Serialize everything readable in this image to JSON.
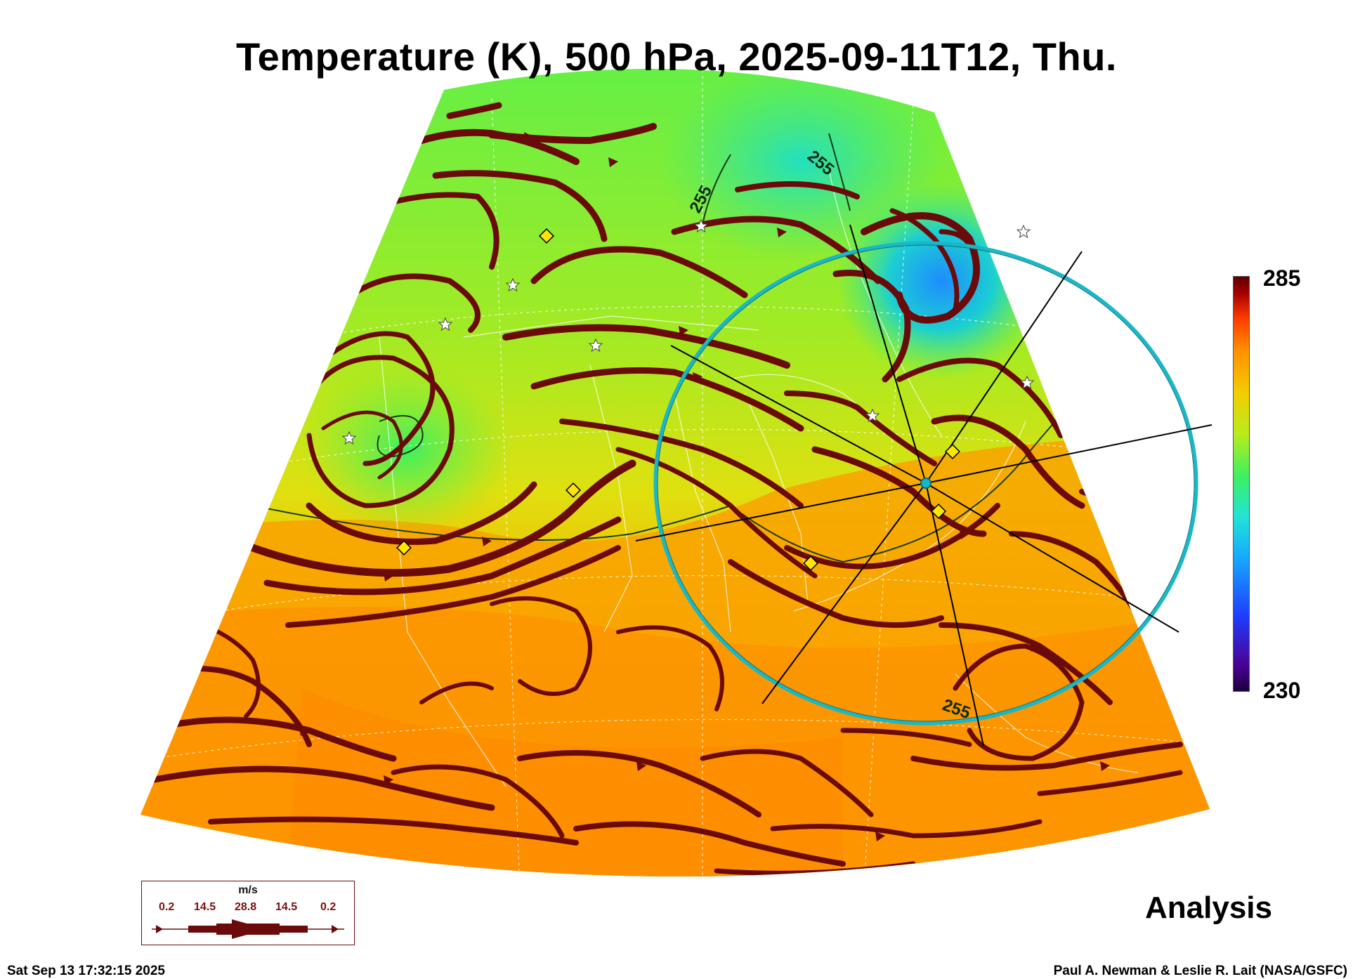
{
  "title": "Temperature (K), 500 hPa, 2025-09-11T12, Thu.",
  "colorbar": {
    "max": "285",
    "min": "230",
    "units": "K"
  },
  "contour_labels": [
    "255",
    "255",
    "255"
  ],
  "legend": {
    "unit": "m/s",
    "labels": [
      "0.2",
      "14.5",
      "28.8",
      "14.5",
      "0.2"
    ]
  },
  "analysis_label": "Analysis",
  "footer": {
    "timestamp": "Sat Sep 13 17:32:15 2025",
    "credit": "Paul A. Newman & Leslie R. Lait (NASA/GSFC)"
  },
  "colors": {
    "streamline": "#6b0a0a",
    "ring": "#19b8c6",
    "marker_diamond": "#ffe600",
    "marker_star": "#ffffff"
  },
  "icons": [
    "star-marker-icon",
    "diamond-marker-icon",
    "streamline-arrow-icon"
  ]
}
